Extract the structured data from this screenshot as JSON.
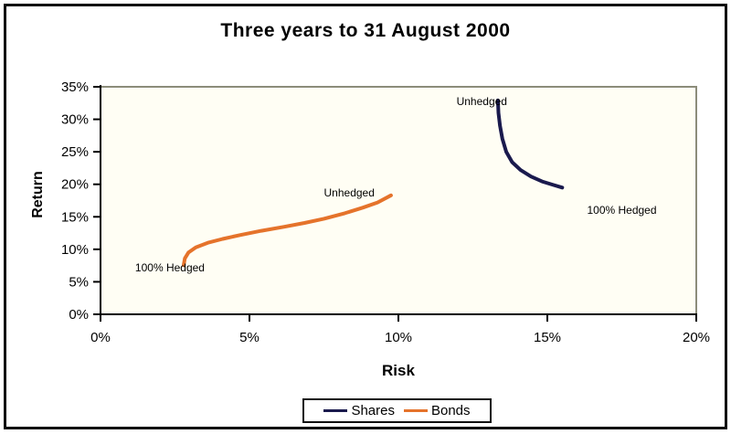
{
  "chart_data": {
    "type": "line",
    "title": "Three years to 31 August 2000",
    "xlabel": "Risk",
    "ylabel": "Return",
    "xlim": [
      0,
      20
    ],
    "ylim": [
      0,
      35
    ],
    "grid": false,
    "legend_position": "bottom",
    "x_ticks": {
      "values": [
        0,
        5,
        10,
        15,
        20
      ],
      "labels": [
        "0%",
        "5%",
        "10%",
        "15%",
        "20%"
      ]
    },
    "y_ticks": {
      "values": [
        0,
        5,
        10,
        15,
        20,
        25,
        30,
        35
      ],
      "labels": [
        "0%",
        "5%",
        "10%",
        "15%",
        "20%",
        "25%",
        "30%",
        "35%"
      ]
    },
    "series": [
      {
        "name": "Shares",
        "color": "#1a1a4d",
        "points": [
          [
            13.34,
            32.9
          ],
          [
            13.36,
            31.0
          ],
          [
            13.41,
            29.0
          ],
          [
            13.49,
            27.0
          ],
          [
            13.62,
            25.0
          ],
          [
            13.82,
            23.4
          ],
          [
            14.1,
            22.2
          ],
          [
            14.45,
            21.2
          ],
          [
            14.85,
            20.4
          ],
          [
            15.2,
            19.9
          ],
          [
            15.5,
            19.5
          ]
        ]
      },
      {
        "name": "Bonds",
        "color": "#e5732b",
        "points": [
          [
            2.79,
            7.55
          ],
          [
            2.83,
            8.6
          ],
          [
            2.95,
            9.5
          ],
          [
            3.2,
            10.3
          ],
          [
            3.6,
            11.0
          ],
          [
            4.1,
            11.6
          ],
          [
            4.7,
            12.2
          ],
          [
            5.4,
            12.85
          ],
          [
            6.15,
            13.45
          ],
          [
            6.85,
            14.05
          ],
          [
            7.5,
            14.7
          ],
          [
            8.2,
            15.55
          ],
          [
            8.8,
            16.4
          ],
          [
            9.3,
            17.2
          ],
          [
            9.75,
            18.3
          ]
        ]
      }
    ],
    "annotations": [
      {
        "text": "Unhedged",
        "x": 12.8,
        "y": 32.75,
        "series": "Shares"
      },
      {
        "text": "100% Hedged",
        "x": 17.5,
        "y": 16.0,
        "series": "Shares"
      },
      {
        "text": "Unhedged",
        "x": 8.35,
        "y": 18.7,
        "series": "Bonds"
      },
      {
        "text": "100% Hedged",
        "x": 2.33,
        "y": 7.15,
        "series": "Bonds"
      }
    ]
  },
  "colors": {
    "shares_line": "#1a1a4d",
    "bonds_line": "#e5732b",
    "axis": "#000000",
    "plot_border": "#8c8c7a",
    "plot_fill": "#fffef4",
    "frame_border": "#0a0a0a"
  },
  "legend": {
    "entries": [
      {
        "label": "Shares"
      },
      {
        "label": "Bonds"
      }
    ]
  }
}
